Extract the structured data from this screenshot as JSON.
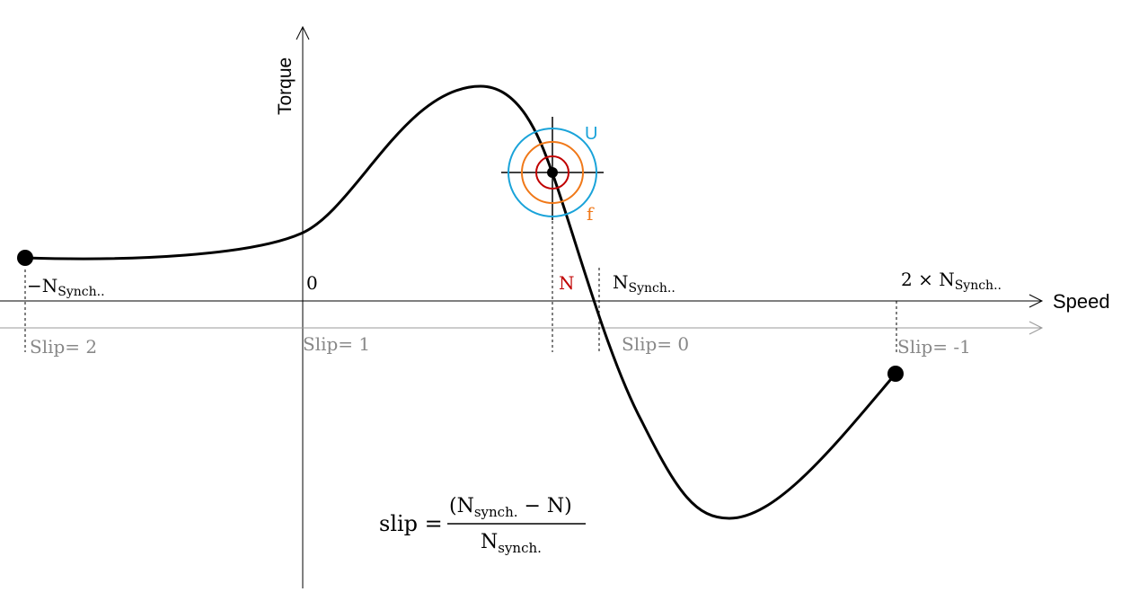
{
  "axes": {
    "y_label": "Torque",
    "x_label": "Speed"
  },
  "speed_ticks": [
    {
      "main": "−N",
      "sub": "Synch.."
    },
    {
      "main": "0",
      "sub": ""
    },
    {
      "main": "N",
      "sub": ""
    },
    {
      "main": "N",
      "sub": "Synch.."
    },
    {
      "main": "2 × N",
      "sub": "Synch.."
    }
  ],
  "slip_ticks": [
    "Slip= 2",
    "Slip= 1",
    "Slip= 0",
    "Slip= -1"
  ],
  "operating_point": {
    "outer_label": "U",
    "inner_label": "f"
  },
  "formula": {
    "lhs": "slip =",
    "num_open": "(N",
    "num_sub": "synch.",
    "num_rest": " − N)",
    "den_main": "N",
    "den_sub": "synch."
  },
  "colors": {
    "curve": "#000000",
    "slip_axis": "#999999",
    "slip_text": "#888888",
    "U_circle": "#1aa3d9",
    "f_circle": "#f07818",
    "inner_circle": "#c00000",
    "N_label": "#c00000"
  }
}
